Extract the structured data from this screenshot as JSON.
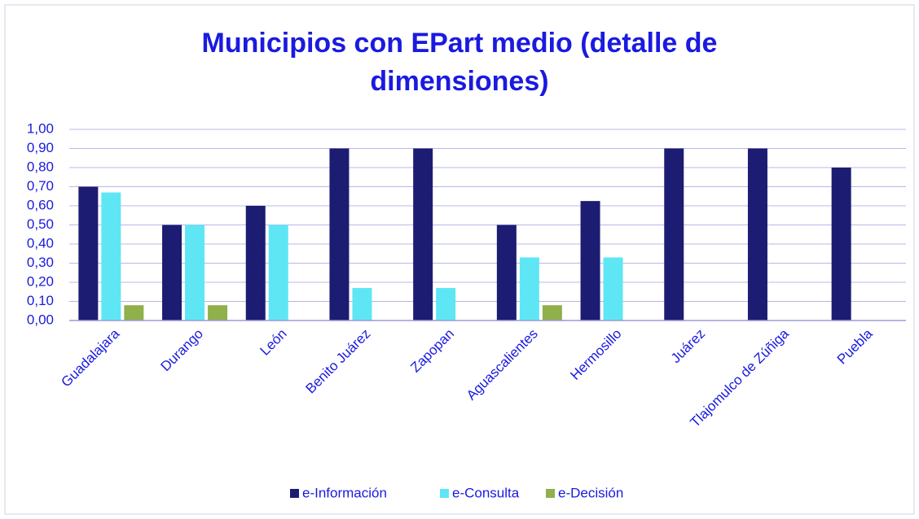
{
  "chart_data": {
    "type": "bar",
    "title": "Municipios con EPart medio (detalle de dimensiones)",
    "categories": [
      "Guadalajara",
      "Durango",
      "León",
      "Benito Juárez",
      "Zapopan",
      "Aguascalientes",
      "Hermosillo",
      "Juárez",
      "Tlajomulco de Zúñiga",
      "Puebla"
    ],
    "series": [
      {
        "name": "e-Información",
        "color": "#1c1c72",
        "values": [
          0.7,
          0.5,
          0.6,
          0.9,
          0.9,
          0.5,
          0.625,
          0.9,
          0.9,
          0.8
        ]
      },
      {
        "name": "e-Consulta",
        "color": "#5fe6f4",
        "values": [
          0.67,
          0.5,
          0.5,
          0.17,
          0.17,
          0.33,
          0.33,
          0,
          0,
          0
        ]
      },
      {
        "name": "e-Decisión",
        "color": "#8fb04a",
        "values": [
          0.08,
          0.08,
          0,
          0,
          0,
          0.08,
          0,
          0,
          0,
          0
        ]
      }
    ],
    "ylim": [
      0,
      1
    ],
    "yticks": [
      {
        "value": 0,
        "label": "0,00"
      },
      {
        "value": 0.1,
        "label": "0,10"
      },
      {
        "value": 0.2,
        "label": "0,20"
      },
      {
        "value": 0.3,
        "label": "0,30"
      },
      {
        "value": 0.4,
        "label": "0,40"
      },
      {
        "value": 0.5,
        "label": "0,50"
      },
      {
        "value": 0.6,
        "label": "0,60"
      },
      {
        "value": 0.7,
        "label": "0,70"
      },
      {
        "value": 0.8,
        "label": "0,80"
      },
      {
        "value": 0.9,
        "label": "0,90"
      },
      {
        "value": 1,
        "label": "1,00"
      }
    ],
    "grid": true,
    "legend": "bottom"
  }
}
